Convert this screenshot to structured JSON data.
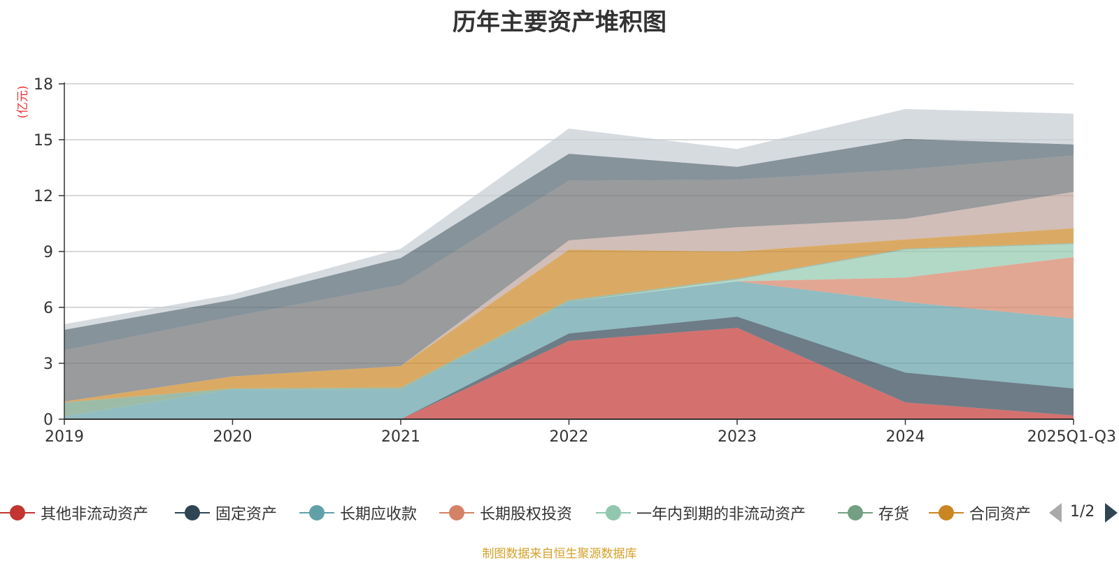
{
  "chart_data": {
    "type": "area",
    "stacked": true,
    "title": "历年主要资产堆积图",
    "ylabel": "(亿元)",
    "xlabel": "",
    "categories": [
      "2019",
      "2020",
      "2021",
      "2022",
      "2023",
      "2024",
      "2025Q1-Q3"
    ],
    "ylim": [
      0,
      18
    ],
    "yticks": [
      0,
      3,
      6,
      9,
      12,
      15,
      18
    ],
    "grid": true,
    "legend_position": "bottom",
    "series": [
      {
        "name": "其他非流动资产",
        "color": "#c23531",
        "values": [
          0,
          0,
          0,
          4.2,
          4.9,
          0.9,
          0.2
        ]
      },
      {
        "name": "固定资产",
        "color": "#2f4554",
        "values": [
          0,
          0,
          0,
          0.4,
          0.6,
          1.6,
          1.45
        ]
      },
      {
        "name": "长期应收款",
        "color": "#61a0a8",
        "values": [
          0.15,
          1.6,
          1.6,
          1.7,
          1.9,
          3.8,
          3.75
        ]
      },
      {
        "name": "长期股权投资",
        "color": "#d48265",
        "values": [
          0,
          0,
          0,
          0,
          0,
          1.3,
          3.3
        ]
      },
      {
        "name": "一年内到期的非流动资产",
        "color": "#91c7ae",
        "values": [
          0,
          0,
          0,
          0,
          0.1,
          1.5,
          0.7
        ]
      },
      {
        "name": "存货",
        "color": "#749f83",
        "values": [
          0.75,
          0.05,
          0.1,
          0.1,
          0.05,
          0.05,
          0.05
        ]
      },
      {
        "name": "合同资产",
        "color": "#ca8622",
        "values": [
          0.05,
          0.65,
          1.15,
          2.7,
          1.45,
          0.5,
          0.8
        ]
      },
      {
        "name": "",
        "color": "#bda29a",
        "values": [
          0,
          0,
          0,
          0.5,
          1.3,
          1.1,
          1.95
        ]
      },
      {
        "name": "",
        "color": "#6e7074",
        "values": [
          2.75,
          3.2,
          4.35,
          3.2,
          2.55,
          2.65,
          1.95
        ]
      },
      {
        "name": "",
        "color": "#546570",
        "values": [
          1.1,
          0.9,
          1.45,
          1.45,
          0.7,
          1.65,
          0.6
        ]
      },
      {
        "name": "",
        "color": "#c4ccd3",
        "values": [
          0.3,
          0.3,
          0.5,
          1.35,
          0.95,
          1.6,
          1.65
        ]
      }
    ]
  },
  "legend": {
    "page": "1/2"
  },
  "source_note": "制图数据来自恒生聚源数据库"
}
